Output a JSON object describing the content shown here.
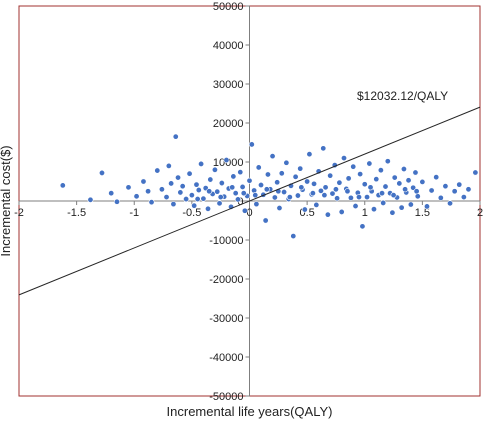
{
  "chart_data": {
    "type": "scatter",
    "title": "",
    "xlabel": "Incremental life years(QALY)",
    "ylabel": "Incremental cost($)",
    "xlim": [
      -2,
      2
    ],
    "ylim": [
      -50000,
      50000
    ],
    "x_ticks": [
      "-2",
      "-1.5",
      "-1",
      "-0.5",
      "0",
      "0.5",
      "1",
      "1.5",
      "2"
    ],
    "y_ticks": [
      "50000",
      "40000",
      "30000",
      "20000",
      "10000",
      "0",
      "-10000",
      "-20000",
      "-30000",
      "-40000",
      "-50000"
    ],
    "grid": false,
    "marker_color": "#4472C4",
    "frame_color": "#A0302F",
    "line": {
      "slope": 12032.12,
      "intercept": 0,
      "label": "$12032.12/QALY"
    },
    "series": [
      {
        "points": [
          [
            -1.62,
            4000
          ],
          [
            -1.38,
            300
          ],
          [
            -1.28,
            7200
          ],
          [
            -1.2,
            2000
          ],
          [
            -1.15,
            -200
          ],
          [
            -1.05,
            3500
          ],
          [
            -0.98,
            1200
          ],
          [
            -0.92,
            5000
          ],
          [
            -0.88,
            2500
          ],
          [
            -0.85,
            -300
          ],
          [
            -0.8,
            7800
          ],
          [
            -0.76,
            3000
          ],
          [
            -0.72,
            1000
          ],
          [
            -0.7,
            9000
          ],
          [
            -0.68,
            4500
          ],
          [
            -0.66,
            -800
          ],
          [
            -0.64,
            16500
          ],
          [
            -0.62,
            6000
          ],
          [
            -0.6,
            2200
          ],
          [
            -0.58,
            3800
          ],
          [
            -0.55,
            500
          ],
          [
            -0.52,
            7000
          ],
          [
            -0.5,
            1500
          ],
          [
            -0.48,
            -1200
          ],
          [
            -0.46,
            4200
          ],
          [
            -0.44,
            2800
          ],
          [
            -0.42,
            9500
          ],
          [
            -0.4,
            600
          ],
          [
            -0.38,
            3300
          ],
          [
            -0.36,
            -2000
          ],
          [
            -0.34,
            5500
          ],
          [
            -0.32,
            1800
          ],
          [
            -0.3,
            8000
          ],
          [
            -0.28,
            2400
          ],
          [
            -0.26,
            -600
          ],
          [
            -0.24,
            4600
          ],
          [
            -0.22,
            1100
          ],
          [
            -0.2,
            10500
          ],
          [
            -0.18,
            3200
          ],
          [
            -0.16,
            -1500
          ],
          [
            -0.14,
            6300
          ],
          [
            -0.12,
            2000
          ],
          [
            -0.1,
            400
          ],
          [
            -0.08,
            7400
          ],
          [
            -0.06,
            3600
          ],
          [
            -0.04,
            -2500
          ],
          [
            -0.02,
            1300
          ],
          [
            0.0,
            5200
          ],
          [
            0.02,
            14500
          ],
          [
            0.04,
            2700
          ],
          [
            0.06,
            -800
          ],
          [
            0.08,
            8600
          ],
          [
            0.1,
            4100
          ],
          [
            0.12,
            1600
          ],
          [
            0.14,
            -5000
          ],
          [
            0.16,
            6800
          ],
          [
            0.18,
            3000
          ],
          [
            0.2,
            11500
          ],
          [
            0.22,
            900
          ],
          [
            0.24,
            4800
          ],
          [
            0.26,
            -1800
          ],
          [
            0.28,
            7100
          ],
          [
            0.3,
            2300
          ],
          [
            0.32,
            9800
          ],
          [
            0.34,
            500
          ],
          [
            0.36,
            3900
          ],
          [
            0.38,
            -9000
          ],
          [
            0.4,
            6200
          ],
          [
            0.42,
            1400
          ],
          [
            0.44,
            8300
          ],
          [
            0.46,
            2900
          ],
          [
            0.48,
            -2200
          ],
          [
            0.5,
            5000
          ],
          [
            0.52,
            12000
          ],
          [
            0.54,
            1700
          ],
          [
            0.56,
            4400
          ],
          [
            0.58,
            -1000
          ],
          [
            0.6,
            7600
          ],
          [
            0.62,
            2600
          ],
          [
            0.64,
            13500
          ],
          [
            0.66,
            3500
          ],
          [
            0.68,
            -3500
          ],
          [
            0.7,
            6500
          ],
          [
            0.72,
            1900
          ],
          [
            0.74,
            9200
          ],
          [
            0.76,
            700
          ],
          [
            0.78,
            4700
          ],
          [
            0.8,
            -2800
          ],
          [
            0.82,
            11000
          ],
          [
            0.84,
            3100
          ],
          [
            0.86,
            5800
          ],
          [
            0.88,
            800
          ],
          [
            0.9,
            8800
          ],
          [
            0.92,
            -1300
          ],
          [
            0.94,
            2100
          ],
          [
            0.96,
            6900
          ],
          [
            0.98,
            -6500
          ],
          [
            1.0,
            4300
          ],
          [
            1.02,
            1000
          ],
          [
            1.04,
            9600
          ],
          [
            1.06,
            2500
          ],
          [
            1.08,
            -2100
          ],
          [
            1.1,
            5600
          ],
          [
            1.12,
            1500
          ],
          [
            1.14,
            7900
          ],
          [
            1.16,
            -500
          ],
          [
            1.18,
            3700
          ],
          [
            1.2,
            10200
          ],
          [
            1.22,
            2000
          ],
          [
            1.24,
            -3000
          ],
          [
            1.26,
            6000
          ],
          [
            1.28,
            900
          ],
          [
            1.3,
            4500
          ],
          [
            1.32,
            -1700
          ],
          [
            1.34,
            8200
          ],
          [
            1.36,
            2200
          ],
          [
            1.38,
            5300
          ],
          [
            1.4,
            -900
          ],
          [
            1.42,
            3400
          ],
          [
            1.44,
            7300
          ],
          [
            1.46,
            1200
          ],
          [
            1.5,
            4900
          ],
          [
            1.54,
            -1400
          ],
          [
            1.58,
            2700
          ],
          [
            1.62,
            6100
          ],
          [
            1.66,
            800
          ],
          [
            1.7,
            3800
          ],
          [
            1.74,
            -600
          ],
          [
            1.78,
            2500
          ],
          [
            1.82,
            4200
          ],
          [
            1.86,
            1000
          ],
          [
            1.9,
            3000
          ],
          [
            1.96,
            7300
          ],
          [
            -0.45,
            500
          ],
          [
            -0.35,
            2500
          ],
          [
            -0.25,
            1000
          ],
          [
            -0.15,
            3500
          ],
          [
            -0.05,
            2000
          ],
          [
            0.05,
            1500
          ],
          [
            0.15,
            3000
          ],
          [
            0.25,
            2500
          ],
          [
            0.35,
            1000
          ],
          [
            0.45,
            3500
          ],
          [
            0.55,
            2000
          ],
          [
            0.65,
            1500
          ],
          [
            0.75,
            3000
          ],
          [
            0.85,
            2500
          ],
          [
            0.95,
            1000
          ],
          [
            1.05,
            3500
          ],
          [
            1.15,
            2000
          ],
          [
            1.25,
            1500
          ],
          [
            1.35,
            3000
          ],
          [
            1.45,
            2500
          ]
        ]
      }
    ]
  }
}
